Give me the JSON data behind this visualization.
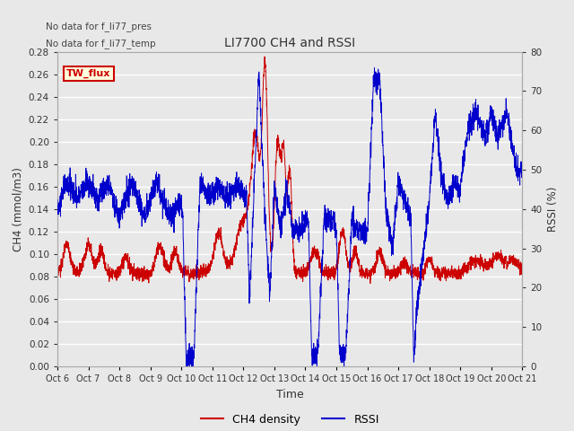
{
  "title": "LI7700 CH4 and RSSI",
  "xlabel": "Time",
  "ylabel_left": "CH4 (mmol/m3)",
  "ylabel_right": "RSSI (%)",
  "text_annotations": [
    "No data for f_li77_pres",
    "No data for f_li77_temp"
  ],
  "legend_box_label": "TW_flux",
  "legend_box_color": "#cc0000",
  "x_tick_labels": [
    "Oct 6",
    "Oct 7",
    "Oct 8",
    "Oct 9",
    "Oct 10",
    "Oct 11",
    "Oct 12",
    "Oct 13",
    "Oct 14",
    "Oct 15",
    "Oct 16",
    "Oct 17",
    "Oct 18",
    "Oct 19",
    "Oct 20",
    "Oct 21"
  ],
  "ylim_left": [
    0.0,
    0.28
  ],
  "ylim_right": [
    0,
    80
  ],
  "yticks_left": [
    0.0,
    0.02,
    0.04,
    0.06,
    0.08,
    0.1,
    0.12,
    0.14,
    0.16,
    0.18,
    0.2,
    0.22,
    0.24,
    0.26,
    0.28
  ],
  "yticks_right": [
    0,
    10,
    20,
    30,
    40,
    50,
    60,
    70,
    80
  ],
  "ch4_color": "#cc0000",
  "rssi_color": "#0000cc",
  "background_color": "#e8e8e8",
  "plot_bg_color": "#e8e8e8",
  "grid_color": "#ffffff"
}
